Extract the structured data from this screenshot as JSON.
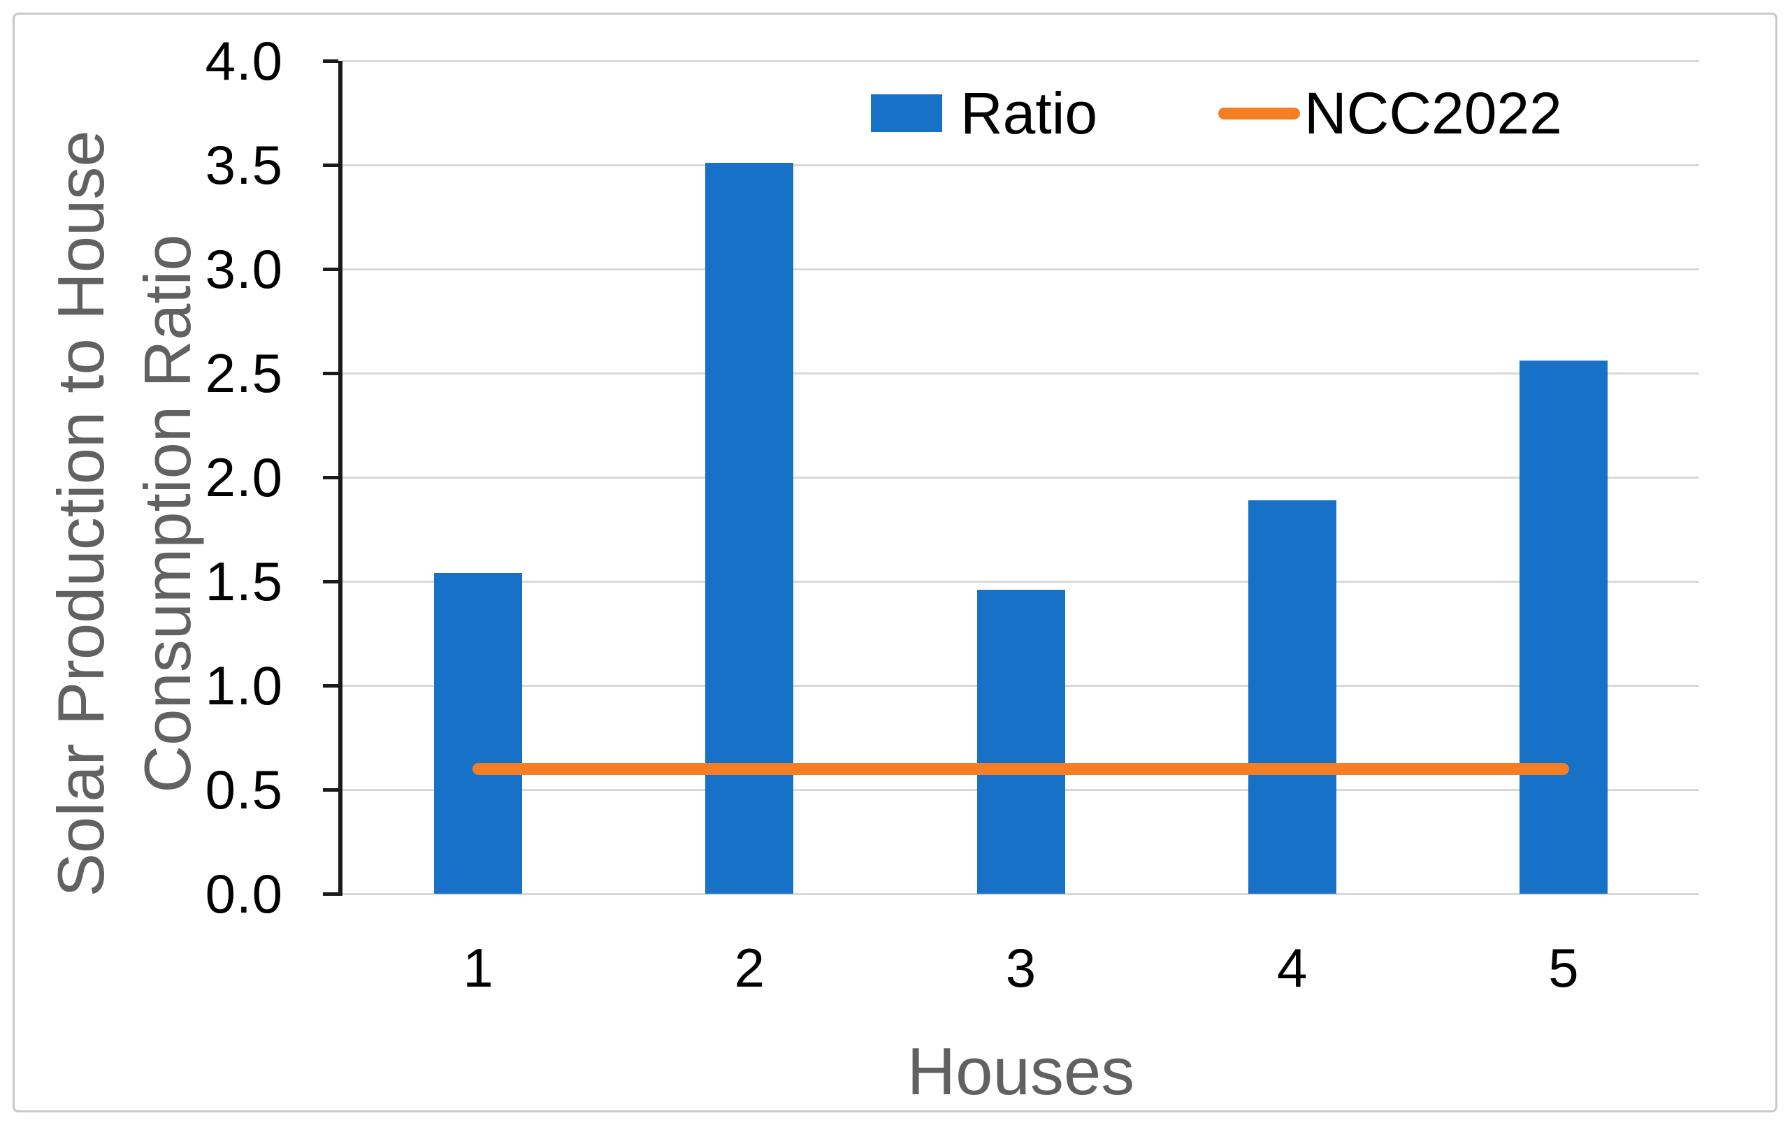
{
  "figure": {
    "background": "#FFFFFF",
    "border_color": "#C9C9C9"
  },
  "colors": {
    "bar": "#1772C7",
    "line": "#F57D23",
    "gridline": "#D8D8D8",
    "axis_line": "#1A1A1A",
    "tick_label": "#000000",
    "axis_title": "#616161",
    "legend_text": "#000000"
  },
  "chart_data": {
    "type": "combo",
    "categories": [
      "1",
      "2",
      "3",
      "4",
      "5"
    ],
    "series": [
      {
        "name": "Ratio",
        "type": "bar",
        "color": "#1772C7",
        "values": [
          1.54,
          3.51,
          1.46,
          1.89,
          2.56
        ]
      },
      {
        "name": "NCC2022",
        "type": "line",
        "color": "#F57D23",
        "values": [
          0.6,
          0.6,
          0.6,
          0.6,
          0.6
        ]
      }
    ],
    "xlabel": "Houses",
    "ylabel": "Solar Production to House Consumption Ratio",
    "ylabel_lines": [
      "Solar Production to House",
      "Consumption Ratio"
    ],
    "ylim": [
      0.0,
      4.0
    ],
    "ytick_step": 0.5,
    "ytick_format_decimals": 1,
    "grid": true,
    "legend_position": "top-center"
  }
}
